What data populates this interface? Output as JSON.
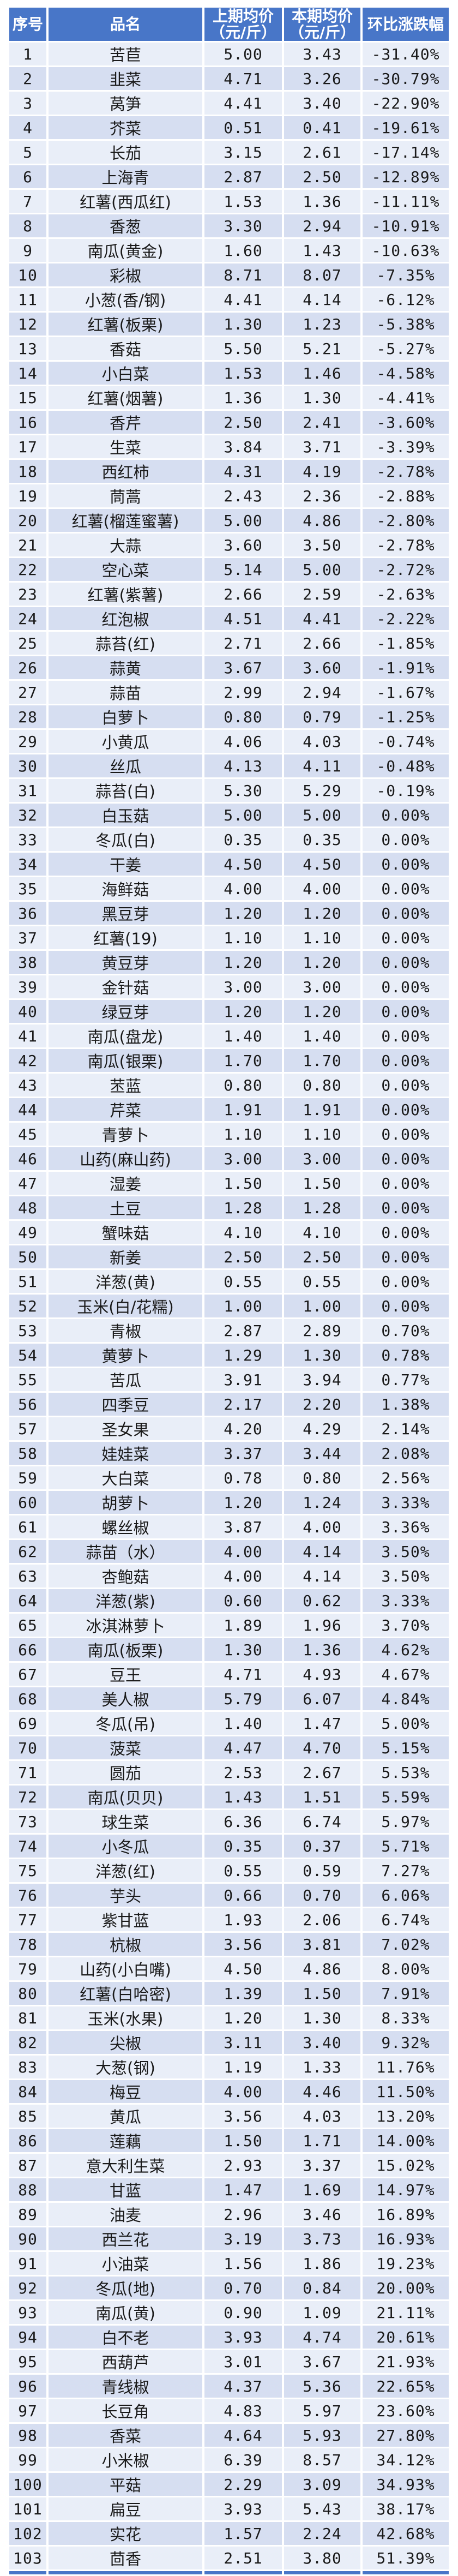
{
  "colors": {
    "header_bg": "#4876C8",
    "row_light": "#E9EEF8",
    "row_dark": "#D6DEF1",
    "bottom_border": "#4876C8",
    "header_text": "#FFFFFF",
    "body_text": "#1A1A1A"
  },
  "table": {
    "columns": [
      {
        "key": "no",
        "label": "序号"
      },
      {
        "key": "name",
        "label": "品名"
      },
      {
        "key": "prev",
        "label": "上期均价\n（元/斤）"
      },
      {
        "key": "curr",
        "label": "本期均价\n（元/斤）"
      },
      {
        "key": "change",
        "label": "环比涨跌幅"
      }
    ],
    "row_fields": [
      "no",
      "name",
      "prev",
      "curr",
      "change"
    ],
    "rows": [
      [
        "1",
        "苦苣",
        "5.00",
        "3.43",
        "-31.40%"
      ],
      [
        "2",
        "韭菜",
        "4.71",
        "3.26",
        "-30.79%"
      ],
      [
        "3",
        "莴笋",
        "4.41",
        "3.40",
        "-22.90%"
      ],
      [
        "4",
        "芥菜",
        "0.51",
        "0.41",
        "-19.61%"
      ],
      [
        "5",
        "长茄",
        "3.15",
        "2.61",
        "-17.14%"
      ],
      [
        "6",
        "上海青",
        "2.87",
        "2.50",
        "-12.89%"
      ],
      [
        "7",
        "红薯(西瓜红)",
        "1.53",
        "1.36",
        "-11.11%"
      ],
      [
        "8",
        "香葱",
        "3.30",
        "2.94",
        "-10.91%"
      ],
      [
        "9",
        "南瓜(黄金)",
        "1.60",
        "1.43",
        "-10.63%"
      ],
      [
        "10",
        "彩椒",
        "8.71",
        "8.07",
        "-7.35%"
      ],
      [
        "11",
        "小葱(香/钢)",
        "4.41",
        "4.14",
        "-6.12%"
      ],
      [
        "12",
        "红薯(板栗)",
        "1.30",
        "1.23",
        "-5.38%"
      ],
      [
        "13",
        "香菇",
        "5.50",
        "5.21",
        "-5.27%"
      ],
      [
        "14",
        "小白菜",
        "1.53",
        "1.46",
        "-4.58%"
      ],
      [
        "15",
        "红薯(烟薯)",
        "1.36",
        "1.30",
        "-4.41%"
      ],
      [
        "16",
        "香芹",
        "2.50",
        "2.41",
        "-3.60%"
      ],
      [
        "17",
        "生菜",
        "3.84",
        "3.71",
        "-3.39%"
      ],
      [
        "18",
        "西红柿",
        "4.31",
        "4.19",
        "-2.78%"
      ],
      [
        "19",
        "茼蒿",
        "2.43",
        "2.36",
        "-2.88%"
      ],
      [
        "20",
        "红薯(榴莲蜜薯)",
        "5.00",
        "4.86",
        "-2.80%"
      ],
      [
        "21",
        "大蒜",
        "3.60",
        "3.50",
        "-2.78%"
      ],
      [
        "22",
        "空心菜",
        "5.14",
        "5.00",
        "-2.72%"
      ],
      [
        "23",
        "红薯(紫薯)",
        "2.66",
        "2.59",
        "-2.63%"
      ],
      [
        "24",
        "红泡椒",
        "4.51",
        "4.41",
        "-2.22%"
      ],
      [
        "25",
        "蒜苔(红)",
        "2.71",
        "2.66",
        "-1.85%"
      ],
      [
        "26",
        "蒜黄",
        "3.67",
        "3.60",
        "-1.91%"
      ],
      [
        "27",
        "蒜苗",
        "2.99",
        "2.94",
        "-1.67%"
      ],
      [
        "28",
        "白萝卜",
        "0.80",
        "0.79",
        "-1.25%"
      ],
      [
        "29",
        "小黄瓜",
        "4.06",
        "4.03",
        "-0.74%"
      ],
      [
        "30",
        "丝瓜",
        "4.13",
        "4.11",
        "-0.48%"
      ],
      [
        "31",
        "蒜苔(白)",
        "5.30",
        "5.29",
        "-0.19%"
      ],
      [
        "32",
        "白玉菇",
        "5.00",
        "5.00",
        "0.00%"
      ],
      [
        "33",
        "冬瓜(白)",
        "0.35",
        "0.35",
        "0.00%"
      ],
      [
        "34",
        "干姜",
        "4.50",
        "4.50",
        "0.00%"
      ],
      [
        "35",
        "海鲜菇",
        "4.00",
        "4.00",
        "0.00%"
      ],
      [
        "36",
        "黑豆芽",
        "1.20",
        "1.20",
        "0.00%"
      ],
      [
        "37",
        "红薯(19)",
        "1.10",
        "1.10",
        "0.00%"
      ],
      [
        "38",
        "黄豆芽",
        "1.20",
        "1.20",
        "0.00%"
      ],
      [
        "39",
        "金针菇",
        "3.00",
        "3.00",
        "0.00%"
      ],
      [
        "40",
        "绿豆芽",
        "1.20",
        "1.20",
        "0.00%"
      ],
      [
        "41",
        "南瓜(盘龙)",
        "1.40",
        "1.40",
        "0.00%"
      ],
      [
        "42",
        "南瓜(银栗)",
        "1.70",
        "1.70",
        "0.00%"
      ],
      [
        "43",
        "苤蓝",
        "0.80",
        "0.80",
        "0.00%"
      ],
      [
        "44",
        "芹菜",
        "1.91",
        "1.91",
        "0.00%"
      ],
      [
        "45",
        "青萝卜",
        "1.10",
        "1.10",
        "0.00%"
      ],
      [
        "46",
        "山药(麻山药)",
        "3.00",
        "3.00",
        "0.00%"
      ],
      [
        "47",
        "湿姜",
        "1.50",
        "1.50",
        "0.00%"
      ],
      [
        "48",
        "土豆",
        "1.28",
        "1.28",
        "0.00%"
      ],
      [
        "49",
        "蟹味菇",
        "4.10",
        "4.10",
        "0.00%"
      ],
      [
        "50",
        "新姜",
        "2.50",
        "2.50",
        "0.00%"
      ],
      [
        "51",
        "洋葱(黄)",
        "0.55",
        "0.55",
        "0.00%"
      ],
      [
        "52",
        "玉米(白/花糯)",
        "1.00",
        "1.00",
        "0.00%"
      ],
      [
        "53",
        "青椒",
        "2.87",
        "2.89",
        "0.70%"
      ],
      [
        "54",
        "黄萝卜",
        "1.29",
        "1.30",
        "0.78%"
      ],
      [
        "55",
        "苦瓜",
        "3.91",
        "3.94",
        "0.77%"
      ],
      [
        "56",
        "四季豆",
        "2.17",
        "2.20",
        "1.38%"
      ],
      [
        "57",
        "圣女果",
        "4.20",
        "4.29",
        "2.14%"
      ],
      [
        "58",
        "娃娃菜",
        "3.37",
        "3.44",
        "2.08%"
      ],
      [
        "59",
        "大白菜",
        "0.78",
        "0.80",
        "2.56%"
      ],
      [
        "60",
        "胡萝卜",
        "1.20",
        "1.24",
        "3.33%"
      ],
      [
        "61",
        "螺丝椒",
        "3.87",
        "4.00",
        "3.36%"
      ],
      [
        "62",
        "蒜苗（水）",
        "4.00",
        "4.14",
        "3.50%"
      ],
      [
        "63",
        "杏鲍菇",
        "4.00",
        "4.14",
        "3.50%"
      ],
      [
        "64",
        "洋葱(紫)",
        "0.60",
        "0.62",
        "3.33%"
      ],
      [
        "65",
        "冰淇淋萝卜",
        "1.89",
        "1.96",
        "3.70%"
      ],
      [
        "66",
        "南瓜(板栗)",
        "1.30",
        "1.36",
        "4.62%"
      ],
      [
        "67",
        "豆王",
        "4.71",
        "4.93",
        "4.67%"
      ],
      [
        "68",
        "美人椒",
        "5.79",
        "6.07",
        "4.84%"
      ],
      [
        "69",
        "冬瓜(吊)",
        "1.40",
        "1.47",
        "5.00%"
      ],
      [
        "70",
        "菠菜",
        "4.47",
        "4.70",
        "5.15%"
      ],
      [
        "71",
        "圆茄",
        "2.53",
        "2.67",
        "5.53%"
      ],
      [
        "72",
        "南瓜(贝贝)",
        "1.43",
        "1.51",
        "5.59%"
      ],
      [
        "73",
        "球生菜",
        "6.36",
        "6.74",
        "5.97%"
      ],
      [
        "74",
        "小冬瓜",
        "0.35",
        "0.37",
        "5.71%"
      ],
      [
        "75",
        "洋葱(红)",
        "0.55",
        "0.59",
        "7.27%"
      ],
      [
        "76",
        "芋头",
        "0.66",
        "0.70",
        "6.06%"
      ],
      [
        "77",
        "紫甘蓝",
        "1.93",
        "2.06",
        "6.74%"
      ],
      [
        "78",
        "杭椒",
        "3.56",
        "3.81",
        "7.02%"
      ],
      [
        "79",
        "山药(小白嘴)",
        "4.50",
        "4.86",
        "8.00%"
      ],
      [
        "80",
        "红薯(白哈密)",
        "1.39",
        "1.50",
        "7.91%"
      ],
      [
        "81",
        "玉米(水果)",
        "1.20",
        "1.30",
        "8.33%"
      ],
      [
        "82",
        "尖椒",
        "3.11",
        "3.40",
        "9.32%"
      ],
      [
        "83",
        "大葱(钢)",
        "1.19",
        "1.33",
        "11.76%"
      ],
      [
        "84",
        "梅豆",
        "4.00",
        "4.46",
        "11.50%"
      ],
      [
        "85",
        "黄瓜",
        "3.56",
        "4.03",
        "13.20%"
      ],
      [
        "86",
        "莲藕",
        "1.50",
        "1.71",
        "14.00%"
      ],
      [
        "87",
        "意大利生菜",
        "2.93",
        "3.37",
        "15.02%"
      ],
      [
        "88",
        "甘蓝",
        "1.47",
        "1.69",
        "14.97%"
      ],
      [
        "89",
        "油麦",
        "2.96",
        "3.46",
        "16.89%"
      ],
      [
        "90",
        "西兰花",
        "3.19",
        "3.73",
        "16.93%"
      ],
      [
        "91",
        "小油菜",
        "1.56",
        "1.86",
        "19.23%"
      ],
      [
        "92",
        "冬瓜(地)",
        "0.70",
        "0.84",
        "20.00%"
      ],
      [
        "93",
        "南瓜(黄)",
        "0.90",
        "1.09",
        "21.11%"
      ],
      [
        "94",
        "白不老",
        "3.93",
        "4.74",
        "20.61%"
      ],
      [
        "95",
        "西葫芦",
        "3.01",
        "3.67",
        "21.93%"
      ],
      [
        "96",
        "青线椒",
        "4.37",
        "5.36",
        "22.65%"
      ],
      [
        "97",
        "长豆角",
        "4.83",
        "5.97",
        "23.60%"
      ],
      [
        "98",
        "香菜",
        "4.64",
        "5.93",
        "27.80%"
      ],
      [
        "99",
        "小米椒",
        "6.39",
        "8.57",
        "34.12%"
      ],
      [
        "100",
        "平菇",
        "2.29",
        "3.09",
        "34.93%"
      ],
      [
        "101",
        "扁豆",
        "3.93",
        "5.43",
        "38.17%"
      ],
      [
        "102",
        "实花",
        "1.57",
        "2.24",
        "42.68%"
      ],
      [
        "103",
        "茴香",
        "2.51",
        "3.80",
        "51.39%"
      ]
    ]
  }
}
